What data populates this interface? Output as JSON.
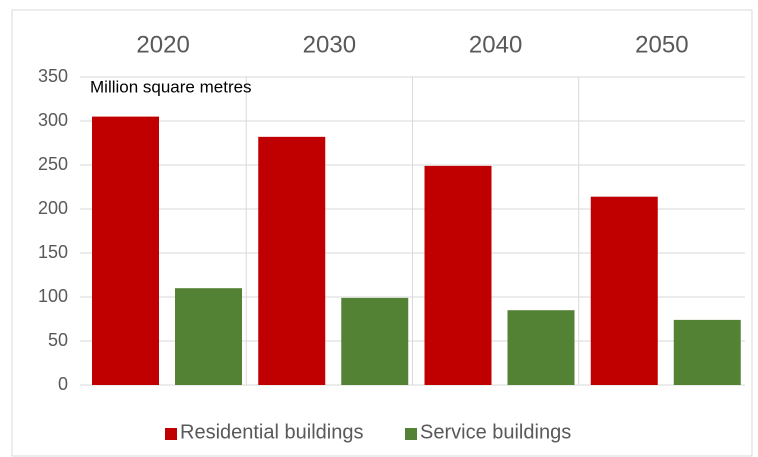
{
  "chart_data": {
    "type": "bar",
    "subtitle": "Million square metres",
    "categories": [
      "2020",
      "2030",
      "2040",
      "2050"
    ],
    "series": [
      {
        "name": "Residential buildings",
        "color": "#c00000",
        "values": [
          305,
          282,
          249,
          214
        ]
      },
      {
        "name": "Service buildings",
        "color": "#548235",
        "values": [
          110,
          99,
          85,
          74
        ]
      }
    ],
    "ylim": [
      0,
      350
    ],
    "yticks": [
      0,
      50,
      100,
      150,
      200,
      250,
      300,
      350
    ],
    "grid": true,
    "legend": "bottom"
  }
}
